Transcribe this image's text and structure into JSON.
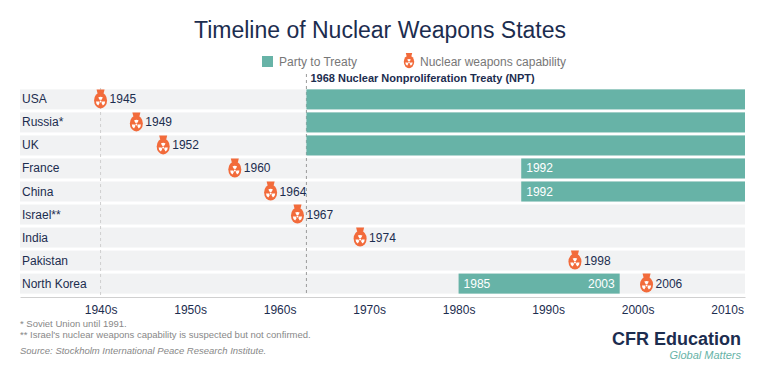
{
  "chart_data": {
    "type": "timeline",
    "orientation": "horizontal",
    "title": "Timeline of Nuclear Weapons States",
    "categories": [
      "USA",
      "Russia*",
      "UK",
      "France",
      "China",
      "Israel**",
      "India",
      "Pakistan",
      "North Korea"
    ],
    "series": [
      {
        "name": "Party to Treaty",
        "type": "bar",
        "color": "#67b3a7",
        "start": [
          1968,
          1968,
          1968,
          1992,
          1992,
          null,
          null,
          null,
          1985
        ],
        "end": [
          2017,
          2017,
          2017,
          2017,
          2017,
          null,
          null,
          null,
          2003
        ],
        "start_labels": [
          null,
          null,
          null,
          "1992",
          "1992",
          null,
          null,
          null,
          "1985"
        ],
        "end_labels": [
          null,
          null,
          null,
          null,
          null,
          null,
          null,
          null,
          "2003"
        ]
      },
      {
        "name": "Nuclear weapons capability",
        "type": "scatter",
        "marker": "bomb",
        "color": "#f26b3b",
        "values": [
          1945,
          1949,
          1952,
          1960,
          1964,
          1967,
          1974,
          1998,
          2006
        ],
        "data_labels": true
      }
    ],
    "xlim": [
      1936,
      2017
    ],
    "xticks": [
      {
        "value": 1945,
        "label": "1940s"
      },
      {
        "value": 1955,
        "label": "1950s"
      },
      {
        "value": 1965,
        "label": "1960s"
      },
      {
        "value": 1975,
        "label": "1970s"
      },
      {
        "value": 1985,
        "label": "1980s"
      },
      {
        "value": 1995,
        "label": "1990s"
      },
      {
        "value": 2005,
        "label": "2000s"
      },
      {
        "value": 2015,
        "label": "2010s"
      }
    ],
    "grid": false,
    "legend": "top",
    "annotations": [
      {
        "x": 1945
      },
      {
        "x": 1968,
        "text": "1968 Nuclear Nonproliferation Treaty (NPT)"
      }
    ],
    "footnotes": [
      "* Soviet Union until 1991.",
      "** Israel's nuclear weapons capability is suspected but not confirmed."
    ],
    "source": "Source: Stockholm International Peace Research Institute.",
    "branding": {
      "name": "CFR Education",
      "tagline": "Global Matters"
    }
  }
}
